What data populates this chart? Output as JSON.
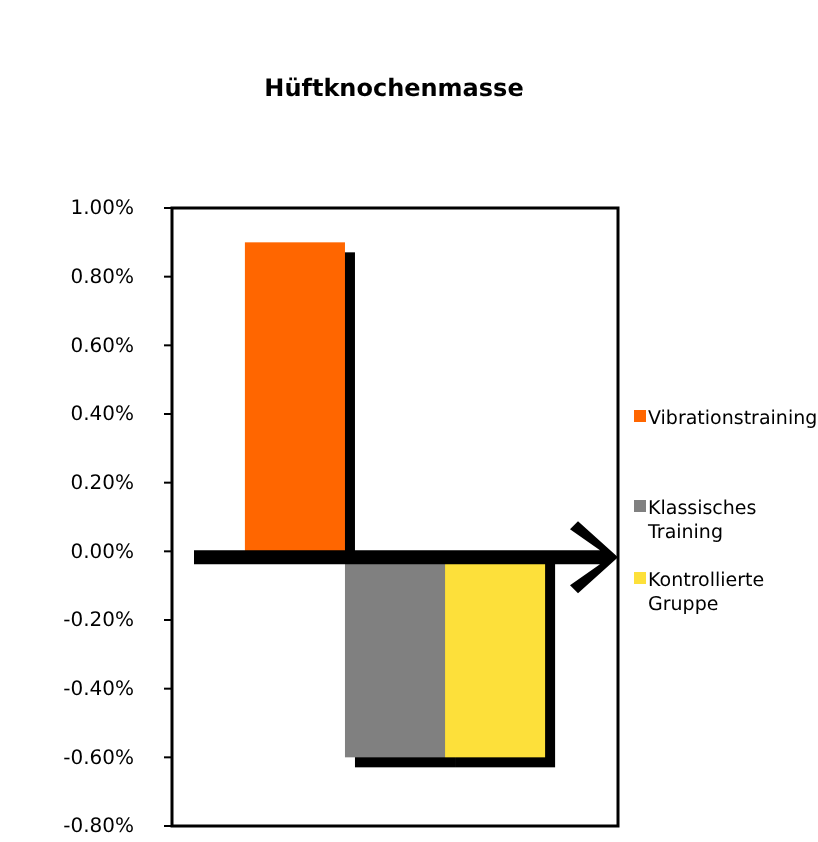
{
  "chart_data": {
    "type": "bar",
    "title": "Hüftknochenmasse",
    "categories": [
      null
    ],
    "series": [
      {
        "name": "Vibrationstraining",
        "color": "#ff6600",
        "values": [
          0.9
        ]
      },
      {
        "name": "Klassisches Training",
        "color": "#808080",
        "values": [
          -0.6
        ]
      },
      {
        "name": "Kontrollierte Gruppe",
        "color": "#fde03a",
        "values": [
          -0.6
        ]
      }
    ],
    "ylim": [
      -0.8,
      1.0
    ],
    "yticks": [
      {
        "value": -0.8,
        "label": "-0.80%"
      },
      {
        "value": -0.6,
        "label": "-0.60%"
      },
      {
        "value": -0.4,
        "label": "-0.40%"
      },
      {
        "value": -0.2,
        "label": "-0.20%"
      },
      {
        "value": 0,
        "label": "0.00%"
      },
      {
        "value": 0.2,
        "label": "0.20%"
      },
      {
        "value": 0.4,
        "label": "0.40%"
      },
      {
        "value": 0.6,
        "label": "0.60%"
      },
      {
        "value": 0.8,
        "label": "0.80%"
      },
      {
        "value": 1.0,
        "label": "1.00%"
      }
    ],
    "grid": false,
    "legend": "right"
  }
}
